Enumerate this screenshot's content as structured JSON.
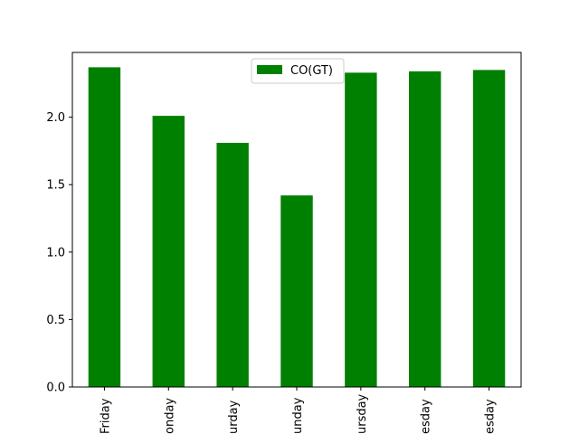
{
  "chart_data": {
    "type": "bar",
    "categories": [
      "Friday",
      "Monday",
      "Saturday",
      "Sunday",
      "Thursday",
      "Tuesday",
      "Wednesday"
    ],
    "category_labels_visible": [
      "Friday",
      "onday",
      "urday",
      "unday",
      "ursday",
      "esday",
      "esday"
    ],
    "series": [
      {
        "name": "CO(GT)",
        "values": [
          2.37,
          2.01,
          1.81,
          1.42,
          2.33,
          2.34,
          2.35
        ]
      }
    ],
    "xlabel": "",
    "ylabel": "",
    "ylim": [
      0,
      2.48
    ],
    "yticks": [
      0.0,
      0.5,
      1.0,
      1.5,
      2.0
    ],
    "ytick_labels": [
      "0.0",
      "0.5",
      "1.0",
      "1.5",
      "2.0"
    ],
    "grid": false,
    "legend_position": "top-center",
    "colors": {
      "bar": "#008000"
    }
  }
}
